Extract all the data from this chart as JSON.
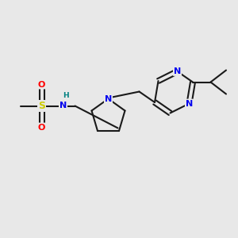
{
  "bg_color": "#e8e8e8",
  "atom_colors": {
    "C": "#1a1a1a",
    "N": "#0000ee",
    "S": "#cccc00",
    "O": "#ff0000",
    "H": "#008080"
  },
  "bond_color": "#1a1a1a",
  "figsize": [
    3.0,
    3.0
  ],
  "dpi": 100
}
